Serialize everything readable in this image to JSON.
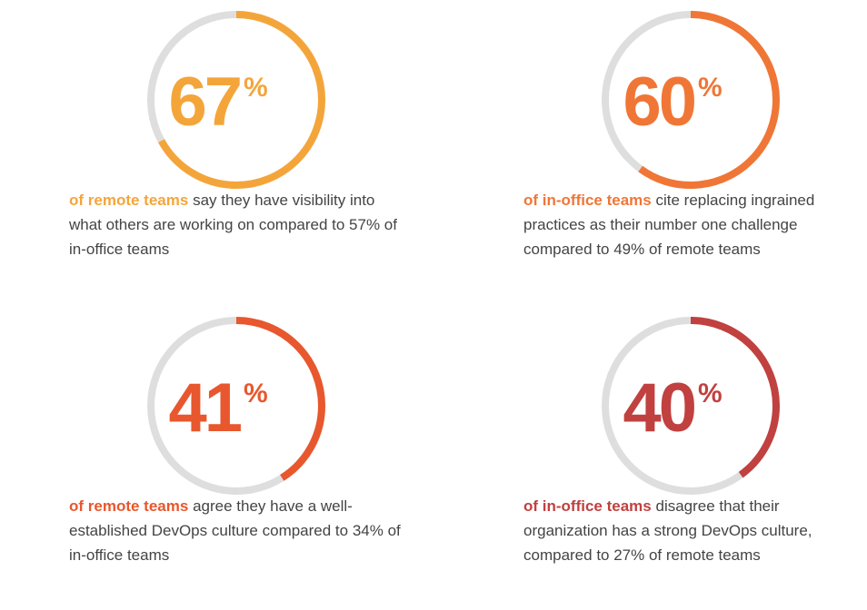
{
  "unit": "%",
  "stats": [
    {
      "value": 67,
      "color": "#f4a53a",
      "highlight": "of remote teams",
      "text": "say they have visibility into what others are working on compared to 57% of in-office teams"
    },
    {
      "value": 60,
      "color": "#f07636",
      "highlight": "of in-office teams",
      "text": "cite replacing ingrained practices as their number one challenge compared to 49% of remote teams"
    },
    {
      "value": 41,
      "color": "#e8572d",
      "highlight": "of remote teams",
      "text": "agree they have a well-established DevOps culture compared to 34% of in-office teams"
    },
    {
      "value": 40,
      "color": "#c0413f",
      "highlight": "of in-office teams",
      "text": "disagree that their organization has a strong DevOps culture, compared to 27% of remote teams"
    }
  ]
}
